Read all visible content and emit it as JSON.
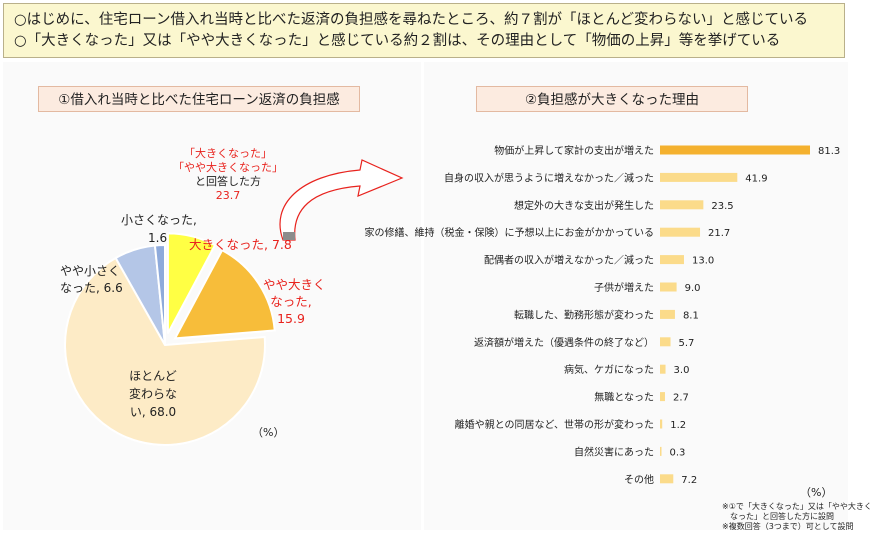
{
  "summary": {
    "line1": "○はじめに、住宅ローン借入れ当時と比べた返済の負担感を尋ねたところ、約７割が「ほとんど変わらない」と感じている",
    "line2": "○「大きくなった」又は「やや大きくなった」と感じている約２割は、その理由として「物価の上昇」等を挙げている"
  },
  "left_panel": {
    "title": "①借入れ当時と比べた住宅ローン返済の負担感",
    "callout": {
      "line1": "「大きくなった」",
      "line2": "「やや大きくなった」",
      "line3": "と回答した方",
      "value": "23.7"
    },
    "unit": "（%）",
    "labels": {
      "small_name": "小さくなった,",
      "small_val": "1.6",
      "big": "大きくなった, 7.8",
      "somewhat_big_1": "やや大きく",
      "somewhat_big_2": "なった,",
      "somewhat_big_3": "15.9",
      "somewhat_small_1": "やや小さく",
      "somewhat_small_2": "なった, 6.6",
      "same_1": "ほとんど",
      "same_2": "変わらな",
      "same_3": "い, 68.0"
    }
  },
  "right_panel": {
    "title": "②負担感が大きくなった理由",
    "unit": "（%）",
    "notes": {
      "line1": "※①で「大きくなった」又は「やや大きく",
      "line2": "なった」と回答した方に設問",
      "line3": "※複数回答（3つまで）可として設問"
    }
  },
  "chart_data": [
    {
      "type": "pie",
      "title": "①借入れ当時と比べた住宅ローン返済の負担感",
      "unit": "%",
      "slices": [
        {
          "name": "大きくなった",
          "value": 7.8,
          "color": "#ffff44"
        },
        {
          "name": "やや大きくなった",
          "value": 15.9,
          "color": "#f7bd3a"
        },
        {
          "name": "ほとんど変わらない",
          "value": 68.0,
          "color": "#fdebc6"
        },
        {
          "name": "やや小さくなった",
          "value": 6.6,
          "color": "#b4c6e7"
        },
        {
          "name": "小さくなった",
          "value": 1.6,
          "color": "#8eaadb"
        }
      ],
      "exploded": [
        "大きくなった",
        "やや大きくなった"
      ]
    },
    {
      "type": "bar",
      "orientation": "horizontal",
      "title": "②負担感が大きくなった理由",
      "unit": "%",
      "categories": [
        "物価が上昇して家計の支出が増えた",
        "自身の収入が思うように増えなかった／減った",
        "想定外の大きな支出が発生した",
        "家の修繕、維持（税金・保険）に予想以上にお金がかかっている",
        "配偶者の収入が増えなかった／減った",
        "子供が増えた",
        "転職した、勤務形態が変わった",
        "返済額が増えた（優遇条件の終了など）",
        "病気、ケガになった",
        "無職となった",
        "離婚や親との同居など、世帯の形が変わった",
        "自然災害にあった",
        "その他"
      ],
      "values": [
        81.3,
        41.9,
        23.5,
        21.7,
        13.0,
        9.0,
        8.1,
        5.7,
        3.0,
        2.7,
        1.2,
        0.3,
        7.2
      ],
      "value_labels": [
        "81.3",
        "41.9",
        "23.5",
        "21.7",
        "13.0",
        "9.0",
        "8.1",
        "5.7",
        "3.0",
        "2.7",
        "1.2",
        "0.3",
        "7.2"
      ],
      "highlight_color": "#f4b12f",
      "bar_color": "#fbdb8a",
      "xlim": [
        0,
        85
      ],
      "grid": false
    }
  ]
}
